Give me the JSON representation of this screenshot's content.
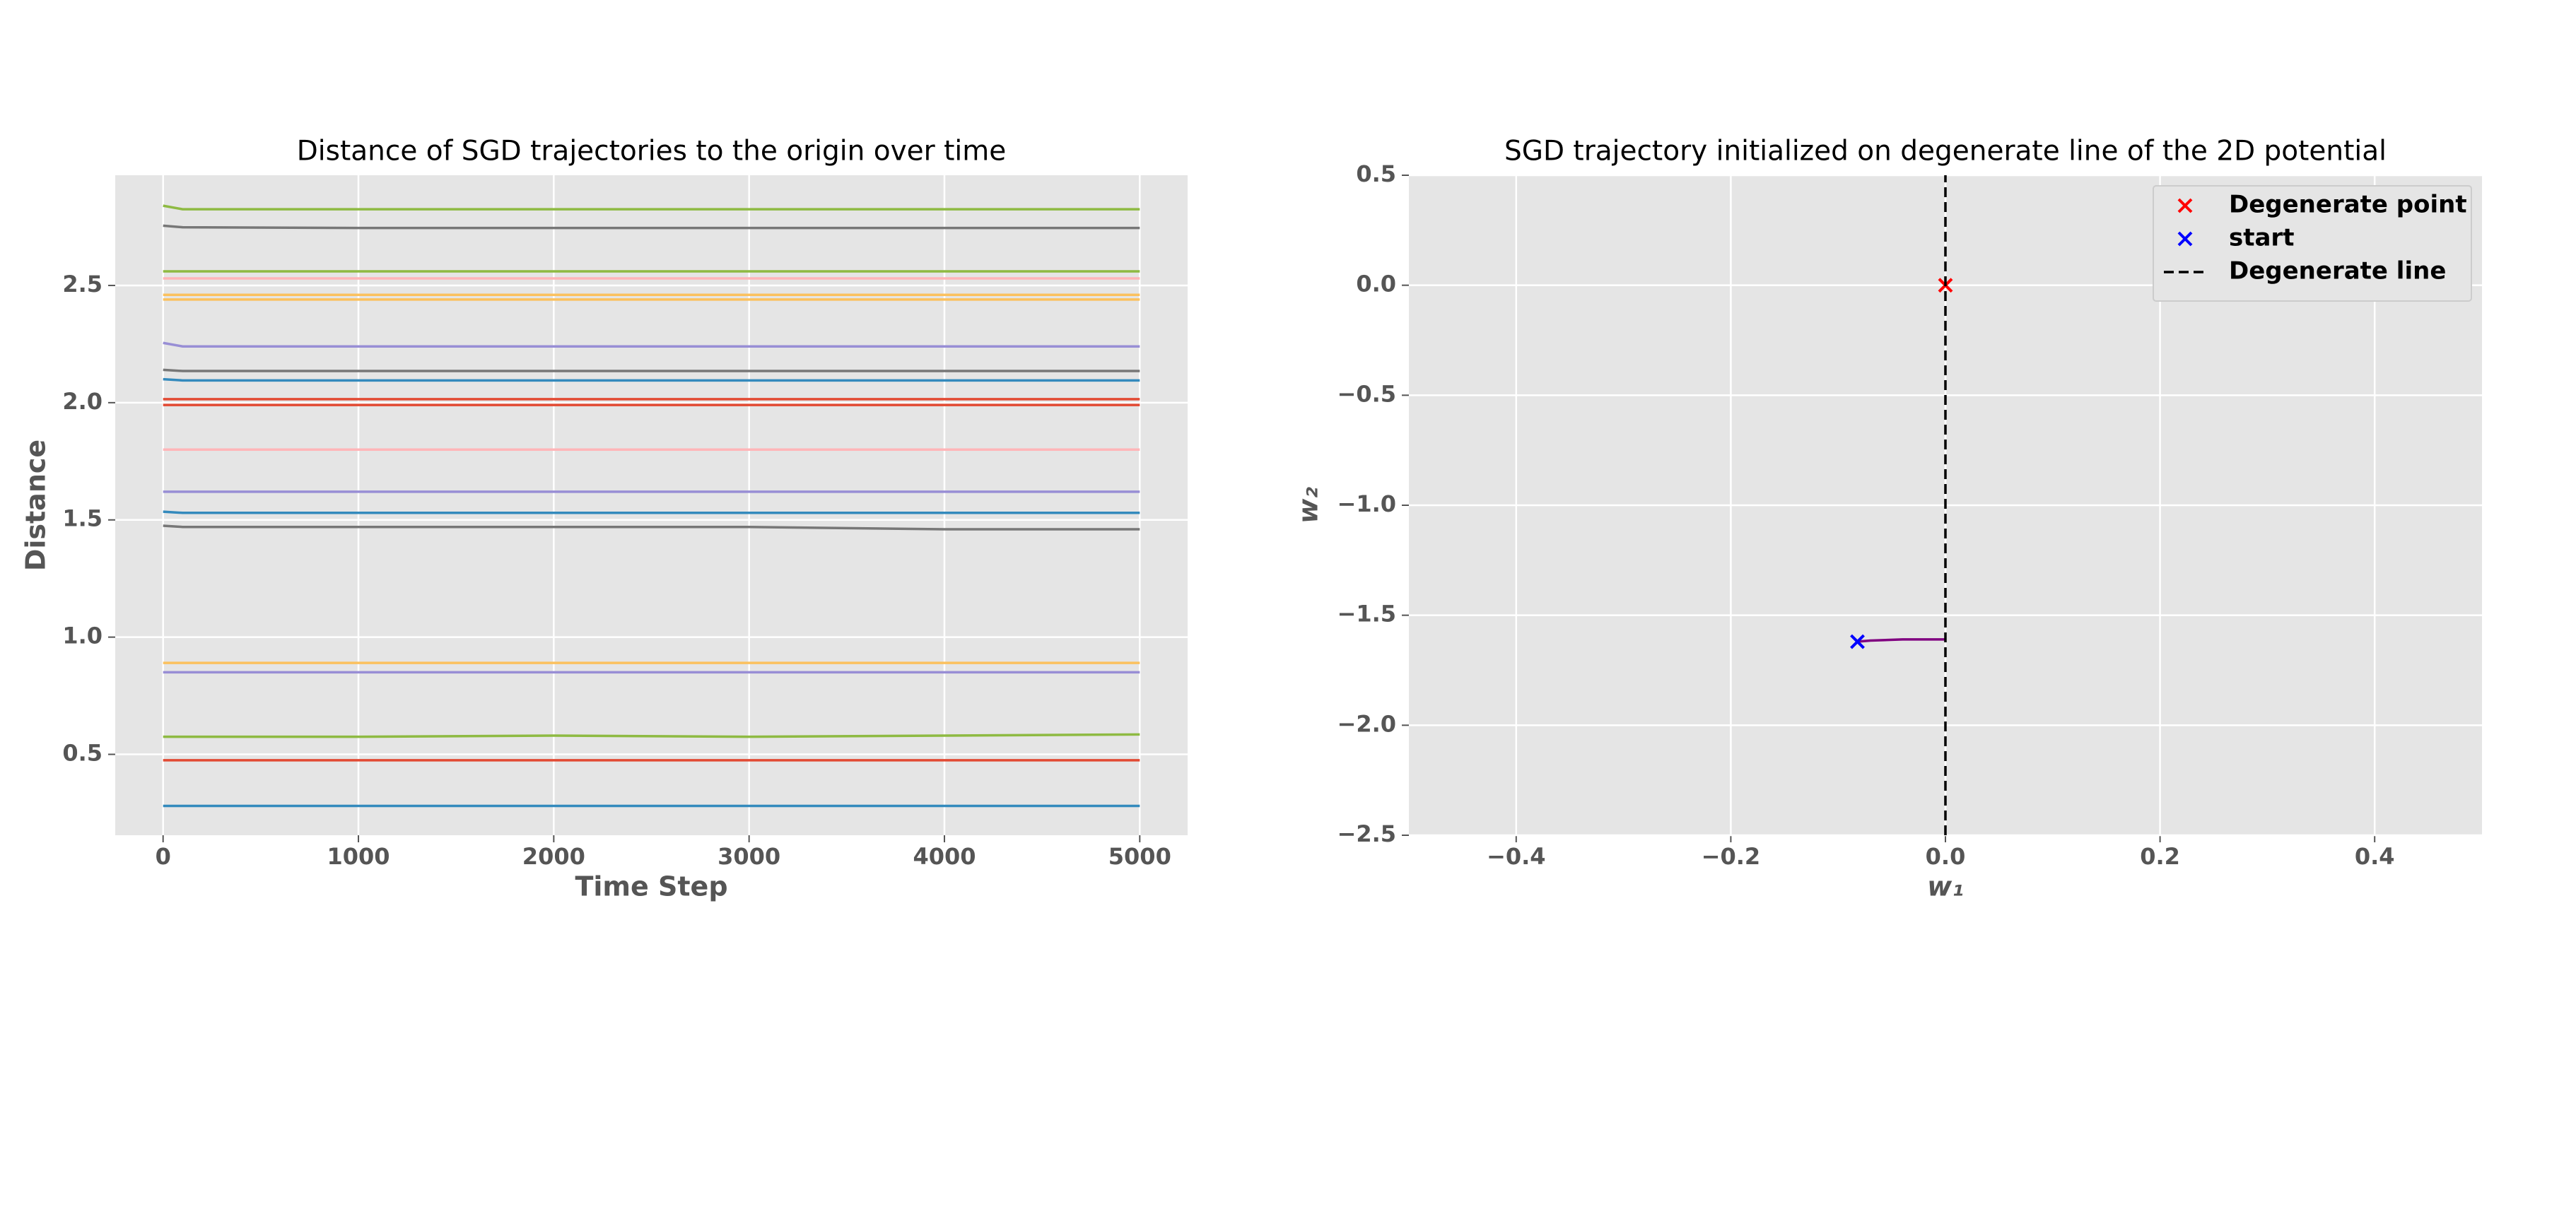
{
  "chart_data": [
    {
      "type": "line",
      "title": "Distance of SGD trajectories to the origin over time",
      "xlabel": "Time Step",
      "ylabel": "Distance",
      "x": [
        0,
        100,
        1000,
        2000,
        3000,
        4000,
        5000
      ],
      "xlim": [
        -245,
        5245
      ],
      "ylim": [
        0.155,
        2.97
      ],
      "xticks": [
        0,
        1000,
        2000,
        3000,
        4000,
        5000
      ],
      "yticks": [
        0.5,
        {
          "value": 1.0,
          "label": "1.0"
        },
        1.5,
        {
          "value": 2.0,
          "label": "2.0"
        },
        2.5
      ],
      "grid": true,
      "series": [
        {
          "color": "#8EBA42",
          "values": [
            2.84,
            2.825,
            2.825,
            2.825,
            2.825,
            2.825,
            2.825
          ]
        },
        {
          "color": "#777777",
          "values": [
            2.755,
            2.748,
            2.745,
            2.745,
            2.745,
            2.745,
            2.745
          ]
        },
        {
          "color": "#8EBA42",
          "values": [
            2.56,
            2.56,
            2.56,
            2.56,
            2.56,
            2.56,
            2.56
          ]
        },
        {
          "color": "#FFB5B8",
          "values": [
            2.53,
            2.53,
            2.53,
            2.53,
            2.53,
            2.53,
            2.53
          ]
        },
        {
          "color": "#FBC15E",
          "values": [
            2.46,
            2.46,
            2.46,
            2.46,
            2.46,
            2.46,
            2.46
          ]
        },
        {
          "color": "#FBC15E",
          "values": [
            2.44,
            2.44,
            2.44,
            2.44,
            2.44,
            2.44,
            2.44
          ]
        },
        {
          "color": "#988ED5",
          "values": [
            2.255,
            2.24,
            2.24,
            2.24,
            2.24,
            2.24,
            2.24
          ]
        },
        {
          "color": "#777777",
          "values": [
            2.14,
            2.135,
            2.135,
            2.135,
            2.135,
            2.135,
            2.135
          ]
        },
        {
          "color": "#348ABD",
          "values": [
            2.1,
            2.095,
            2.095,
            2.095,
            2.095,
            2.095,
            2.095
          ]
        },
        {
          "color": "#E24A33",
          "values": [
            2.015,
            2.015,
            2.015,
            2.015,
            2.015,
            2.015,
            2.015
          ]
        },
        {
          "color": "#E24A33",
          "values": [
            1.99,
            1.99,
            1.99,
            1.99,
            1.99,
            1.99,
            1.99
          ]
        },
        {
          "color": "#FFB5B8",
          "values": [
            1.8,
            1.8,
            1.8,
            1.8,
            1.8,
            1.8,
            1.8
          ]
        },
        {
          "color": "#988ED5",
          "values": [
            1.62,
            1.62,
            1.62,
            1.62,
            1.62,
            1.62,
            1.62
          ]
        },
        {
          "color": "#348ABD",
          "values": [
            1.535,
            1.53,
            1.53,
            1.53,
            1.53,
            1.53,
            1.53
          ]
        },
        {
          "color": "#777777",
          "values": [
            1.475,
            1.47,
            1.47,
            1.47,
            1.47,
            1.46,
            1.46
          ]
        },
        {
          "color": "#FBC15E",
          "values": [
            0.89,
            0.89,
            0.89,
            0.89,
            0.89,
            0.89,
            0.89
          ]
        },
        {
          "color": "#988ED5",
          "values": [
            0.85,
            0.85,
            0.85,
            0.85,
            0.85,
            0.85,
            0.85
          ]
        },
        {
          "color": "#8EBA42",
          "values": [
            0.575,
            0.575,
            0.575,
            0.58,
            0.575,
            0.58,
            0.585
          ]
        },
        {
          "color": "#E24A33",
          "values": [
            0.475,
            0.475,
            0.475,
            0.475,
            0.475,
            0.475,
            0.475
          ]
        },
        {
          "color": "#348ABD",
          "values": [
            0.28,
            0.28,
            0.28,
            0.28,
            0.28,
            0.28,
            0.28
          ]
        }
      ]
    },
    {
      "type": "scatter",
      "title": "SGD trajectory initialized on degenerate line of the 2D potential",
      "xlabel": "w₁",
      "ylabel": "w₂",
      "xlim": [
        -0.5,
        0.5
      ],
      "ylim": [
        -2.5,
        0.5
      ],
      "xticks": [
        {
          "value": -0.4,
          "label": "−0.4"
        },
        {
          "value": -0.2,
          "label": "−0.2"
        },
        {
          "value": 0,
          "label": "0.0"
        },
        0.2,
        0.4
      ],
      "yticks": [
        {
          "value": -2.5,
          "label": "−2.5"
        },
        {
          "value": -2.0,
          "label": "−2.0"
        },
        {
          "value": -1.5,
          "label": "−1.5"
        },
        {
          "value": -1.0,
          "label": "−1.0"
        },
        {
          "value": -0.5,
          "label": "−0.5"
        },
        {
          "value": 0,
          "label": "0.0"
        },
        0.5
      ],
      "grid": true,
      "legend": "upper right",
      "series": [
        {
          "color": "purple",
          "style": "solid",
          "x": [
            -0.082,
            -0.07,
            -0.04,
            0
          ],
          "y": [
            -1.62,
            -1.615,
            -1.61,
            -1.61
          ]
        },
        {
          "name": "Degenerate point",
          "color": "red",
          "marker": "x",
          "x": [
            0
          ],
          "y": [
            0
          ]
        },
        {
          "name": "start",
          "color": "blue",
          "marker": "x",
          "x": [
            -0.082
          ],
          "y": [
            -1.62
          ]
        },
        {
          "name": "Degenerate line",
          "color": "black",
          "style": "dashed",
          "x": [
            0,
            0
          ],
          "y": [
            -2.5,
            0.5
          ]
        }
      ]
    }
  ]
}
